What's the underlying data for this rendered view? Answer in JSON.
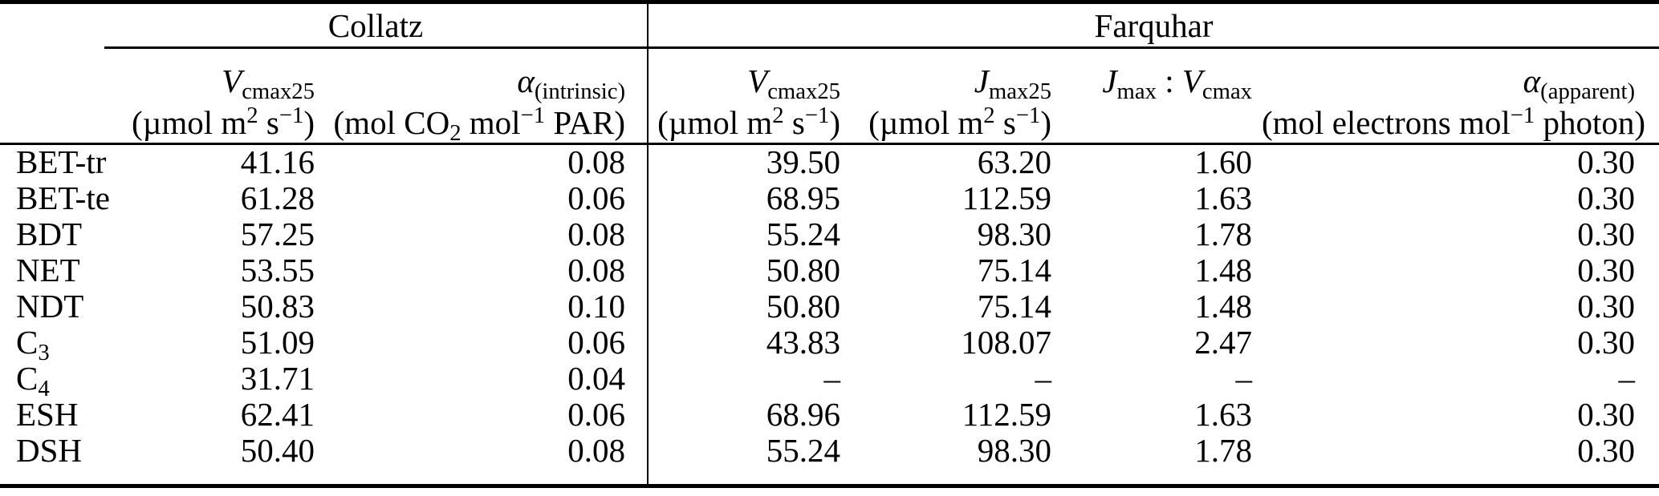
{
  "colors": {
    "background": "#ffffff",
    "text": "#000000",
    "rule": "#000000"
  },
  "table": {
    "group_header": {
      "collatz": "Collatz",
      "farquhar": "Farquhar"
    },
    "columns": [
      {
        "id": "pft-label",
        "label_parts": [],
        "units_parts": []
      },
      {
        "id": "collatz-vcmax25",
        "label_parts": [
          {
            "t": "V",
            "s": "i"
          },
          {
            "t": "cmax25",
            "s": "sub"
          }
        ],
        "units_parts": [
          {
            "t": "(µmol m"
          },
          {
            "t": "2",
            "s": "sup"
          },
          {
            "t": " s"
          },
          {
            "t": "−1",
            "s": "sup"
          },
          {
            "t": ")"
          }
        ]
      },
      {
        "id": "collatz-alpha-intrinsic",
        "label_parts": [
          {
            "t": "α",
            "s": "i"
          },
          {
            "t": "(intrinsic)",
            "s": "sub"
          }
        ],
        "units_parts": [
          {
            "t": "(mol CO"
          },
          {
            "t": "2",
            "s": "sub"
          },
          {
            "t": " mol"
          },
          {
            "t": "−1",
            "s": "sup"
          },
          {
            "t": " PAR)"
          }
        ]
      },
      {
        "id": "farquhar-vcmax25",
        "label_parts": [
          {
            "t": "V",
            "s": "i"
          },
          {
            "t": "cmax25",
            "s": "sub"
          }
        ],
        "units_parts": [
          {
            "t": "(µmol m"
          },
          {
            "t": "2",
            "s": "sup"
          },
          {
            "t": " s"
          },
          {
            "t": "−1",
            "s": "sup"
          },
          {
            "t": ")"
          }
        ]
      },
      {
        "id": "farquhar-jmax25",
        "label_parts": [
          {
            "t": "J",
            "s": "i"
          },
          {
            "t": "max25",
            "s": "sub"
          }
        ],
        "units_parts": [
          {
            "t": "(µmol m"
          },
          {
            "t": "2",
            "s": "sup"
          },
          {
            "t": " s"
          },
          {
            "t": "−1",
            "s": "sup"
          },
          {
            "t": ")"
          }
        ]
      },
      {
        "id": "jmax-vcmax-ratio",
        "label_parts": [
          {
            "t": "J",
            "s": "i"
          },
          {
            "t": "max",
            "s": "sub"
          },
          {
            "t": " : "
          },
          {
            "t": "V",
            "s": "i"
          },
          {
            "t": "cmax",
            "s": "sub"
          }
        ],
        "units_parts": []
      },
      {
        "id": "alpha-apparent",
        "label_parts": [
          {
            "t": "α",
            "s": "i"
          },
          {
            "t": "(apparent)",
            "s": "sub"
          }
        ],
        "units_parts": [
          {
            "t": "(mol electrons mol"
          },
          {
            "t": "−1",
            "s": "sup"
          },
          {
            "t": " photon)"
          }
        ]
      }
    ],
    "rows": [
      {
        "label_parts": [
          {
            "t": "BET-tr"
          }
        ],
        "values": [
          "41.16",
          "0.08",
          "39.50",
          "63.20",
          "1.60",
          "0.30"
        ]
      },
      {
        "label_parts": [
          {
            "t": "BET-te"
          }
        ],
        "values": [
          "61.28",
          "0.06",
          "68.95",
          "112.59",
          "1.63",
          "0.30"
        ]
      },
      {
        "label_parts": [
          {
            "t": "BDT"
          }
        ],
        "values": [
          "57.25",
          "0.08",
          "55.24",
          "98.30",
          "1.78",
          "0.30"
        ]
      },
      {
        "label_parts": [
          {
            "t": "NET"
          }
        ],
        "values": [
          "53.55",
          "0.08",
          "50.80",
          "75.14",
          "1.48",
          "0.30"
        ]
      },
      {
        "label_parts": [
          {
            "t": "NDT"
          }
        ],
        "values": [
          "50.83",
          "0.10",
          "50.80",
          "75.14",
          "1.48",
          "0.30"
        ]
      },
      {
        "label_parts": [
          {
            "t": "C"
          },
          {
            "t": "3",
            "s": "sub"
          }
        ],
        "values": [
          "51.09",
          "0.06",
          "43.83",
          "108.07",
          "2.47",
          "0.30"
        ]
      },
      {
        "label_parts": [
          {
            "t": "C"
          },
          {
            "t": "4",
            "s": "sub"
          }
        ],
        "values": [
          "31.71",
          "0.04",
          "–",
          "–",
          "–",
          "–"
        ]
      },
      {
        "label_parts": [
          {
            "t": "ESH"
          }
        ],
        "values": [
          "62.41",
          "0.06",
          "68.96",
          "112.59",
          "1.63",
          "0.30"
        ]
      },
      {
        "label_parts": [
          {
            "t": "DSH"
          }
        ],
        "values": [
          "50.40",
          "0.08",
          "55.24",
          "98.30",
          "1.78",
          "0.30"
        ]
      }
    ]
  }
}
